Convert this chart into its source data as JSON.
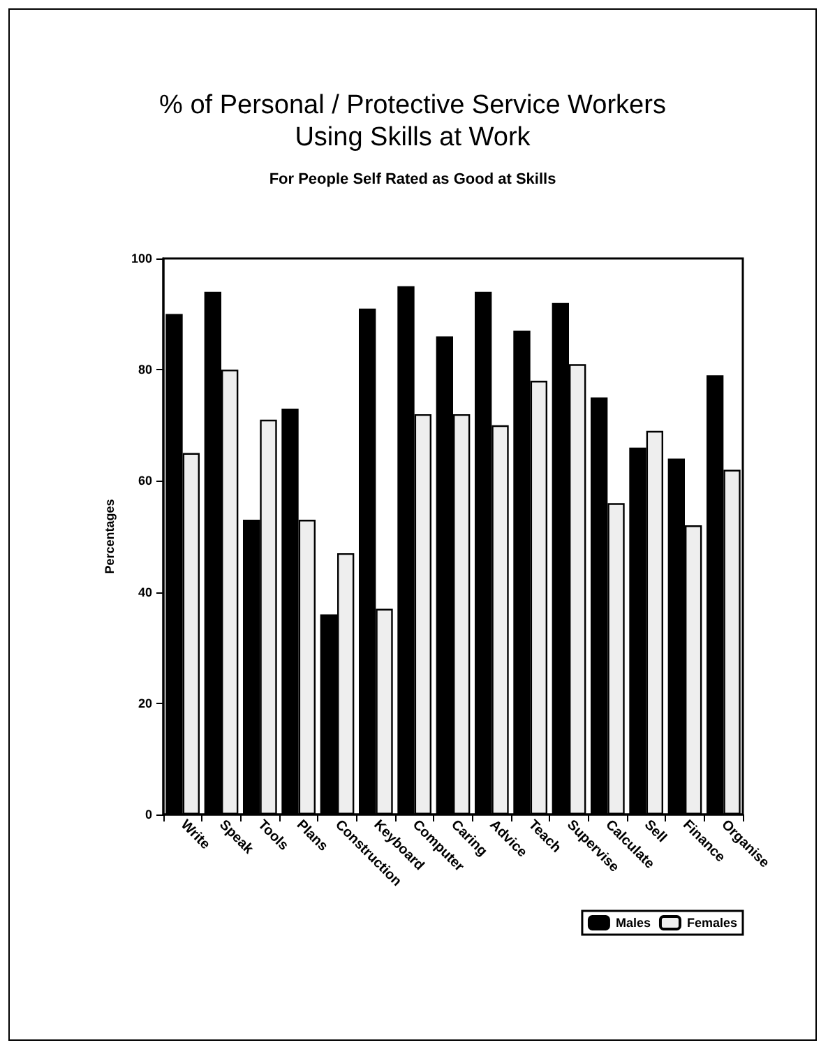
{
  "chart_data": {
    "type": "bar",
    "title": "% of Personal / Protective Service Workers\nUsing Skills at Work",
    "subtitle": "For People Self Rated as Good at Skills",
    "ylabel": "Percentages",
    "categories": [
      "Write",
      "Speak",
      "Tools",
      "Plans",
      "Construction",
      "Keyboard",
      "Computer",
      "Caring",
      "Advice",
      "Teach",
      "Supervise",
      "Calculate",
      "Sell",
      "Finance",
      "Organise"
    ],
    "series": [
      {
        "name": "Males",
        "color": "#000000",
        "values": [
          90,
          94,
          53,
          73,
          36,
          91,
          95,
          86,
          94,
          87,
          92,
          75,
          66,
          64,
          79
        ]
      },
      {
        "name": "Females",
        "color": "#eeeeee",
        "values": [
          65,
          80,
          71,
          53,
          47,
          37,
          72,
          72,
          70,
          78,
          81,
          56,
          69,
          52,
          62
        ]
      }
    ],
    "ylim": [
      0,
      100
    ],
    "yticks": [
      0,
      20,
      40,
      60,
      80,
      100
    ],
    "grid": false,
    "legend": "bottom right"
  }
}
